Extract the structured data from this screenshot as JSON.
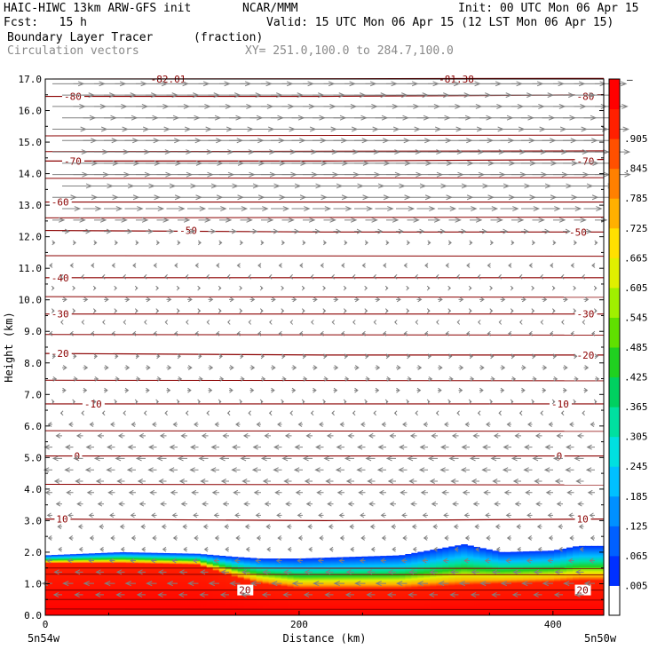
{
  "header": {
    "model": "HAIC-HIWC 13km ARW-GFS init",
    "org": "NCAR/MMM",
    "init": "Init: 00 UTC Mon 06 Apr 15",
    "fcst": "Fcst:   15 h",
    "valid": "Valid: 15 UTC Mon 06 Apr 15 (12 LST Mon 06 Apr 15)",
    "field": "Boundary Layer Tracer",
    "field_units": "(fraction)",
    "vectors": "Circulation vectors",
    "xy": "XY= 251.0,100.0 to 284.7,100.0"
  },
  "chart_data": {
    "type": "heatmap",
    "title": "Boundary Layer Tracer",
    "xlabel": "Distance (km)",
    "ylabel": "Height (km)",
    "xlim": [
      0,
      440
    ],
    "ylim": [
      0,
      17
    ],
    "x_ticks": [
      {
        "v": 0,
        "label": "0"
      },
      {
        "v": 200,
        "label": "200"
      },
      {
        "v": 400,
        "label": "400"
      }
    ],
    "x_end_labels": [
      "5n54w",
      "5n50w"
    ],
    "y_ticks": [
      {
        "v": 0,
        "label": "0.0"
      },
      {
        "v": 1,
        "label": "1.0"
      },
      {
        "v": 2,
        "label": "2.0"
      },
      {
        "v": 3,
        "label": "3.0"
      },
      {
        "v": 4,
        "label": "4.0"
      },
      {
        "v": 5,
        "label": "5.0"
      },
      {
        "v": 6,
        "label": "6.0"
      },
      {
        "v": 7,
        "label": "7.0"
      },
      {
        "v": 8,
        "label": "8.0"
      },
      {
        "v": 9,
        "label": "9.0"
      },
      {
        "v": 10,
        "label": "10.0"
      },
      {
        "v": 11,
        "label": "11.0"
      },
      {
        "v": 12,
        "label": "12.0"
      },
      {
        "v": 13,
        "label": "13.0"
      },
      {
        "v": 14,
        "label": "14.0"
      },
      {
        "v": 15,
        "label": "15.0"
      },
      {
        "v": 16,
        "label": "16.0"
      },
      {
        "v": 17,
        "label": "17.0"
      }
    ],
    "colorbar": {
      "labels": [
        ".005",
        ".065",
        ".125",
        ".185",
        ".245",
        ".305",
        ".365",
        ".425",
        ".485",
        ".545",
        ".605",
        ".665",
        ".725",
        ".785",
        ".845",
        ".905"
      ],
      "top_label": "—",
      "colors": [
        "#ffffff",
        "#0030ff",
        "#0060ff",
        "#0090ff",
        "#00c0ff",
        "#00e0e0",
        "#00e0a0",
        "#00d060",
        "#20d020",
        "#60e000",
        "#a0f000",
        "#e0f000",
        "#ffe000",
        "#ffb000",
        "#ff8000",
        "#ff5000",
        "#ff2000",
        "#ff0000"
      ]
    },
    "tracer_profile": [
      {
        "x": 0,
        "top": 1.9,
        "solid": 1.65
      },
      {
        "x": 60,
        "top": 2.0,
        "solid": 1.65
      },
      {
        "x": 120,
        "top": 1.95,
        "solid": 1.6
      },
      {
        "x": 150,
        "top": 1.85,
        "solid": 1.2
      },
      {
        "x": 170,
        "top": 1.8,
        "solid": 1.0
      },
      {
        "x": 200,
        "top": 1.8,
        "solid": 0.85
      },
      {
        "x": 280,
        "top": 1.9,
        "solid": 0.85
      },
      {
        "x": 330,
        "top": 2.25,
        "solid": 0.95
      },
      {
        "x": 360,
        "top": 2.0,
        "solid": 1.0
      },
      {
        "x": 400,
        "top": 2.05,
        "solid": 1.05
      },
      {
        "x": 420,
        "top": 2.2,
        "solid": 1.1
      },
      {
        "x": 440,
        "top": 2.2,
        "solid": 1.1
      }
    ],
    "temperature_contours": [
      {
        "level": "-80",
        "y": [
          16.45,
          16.45,
          16.5
        ]
      },
      {
        "level": "-70",
        "y": [
          14.4,
          14.4,
          14.45
        ]
      },
      {
        "level": "-60",
        "y": [
          13.1,
          13.1,
          13.1
        ]
      },
      {
        "level": "-50",
        "y": [
          12.2,
          12.15,
          12.15
        ]
      },
      {
        "level": "-40",
        "y": [
          10.7,
          10.7,
          10.7
        ]
      },
      {
        "level": "-30",
        "y": [
          9.55,
          9.55,
          9.55
        ]
      },
      {
        "level": "-20",
        "y": [
          8.3,
          8.25,
          8.25
        ]
      },
      {
        "level": "-10",
        "y": [
          6.7,
          6.7,
          6.7
        ]
      },
      {
        "level": "0",
        "y": [
          5.05,
          5.05,
          5.05
        ]
      },
      {
        "level": "10",
        "y": [
          3.05,
          3.0,
          3.05
        ]
      },
      {
        "level": "20",
        "y": [
          0.8,
          0.8,
          0.8
        ]
      }
    ],
    "extra_contours": [
      17.0,
      15.2,
      14.7,
      13.85,
      12.6,
      11.4,
      10.1,
      8.9,
      7.45,
      5.85,
      4.15,
      1.5,
      1.3,
      0.5,
      0.2
    ],
    "top_edge_labels": [
      "-82.01",
      "-81.38"
    ],
    "line_labels": [
      {
        "text": "-80",
        "x": 14,
        "y": 16.45
      },
      {
        "text": "-80",
        "x": 418,
        "y": 16.45
      },
      {
        "text": "-70",
        "x": 14,
        "y": 14.4
      },
      {
        "text": "-70",
        "x": 418,
        "y": 14.4
      },
      {
        "text": "-60",
        "x": 4,
        "y": 13.1
      },
      {
        "text": "-50",
        "x": 105,
        "y": 12.2
      },
      {
        "text": "-50",
        "x": 412,
        "y": 12.15
      },
      {
        "text": "-40",
        "x": 4,
        "y": 10.7
      },
      {
        "text": "-30",
        "x": 4,
        "y": 9.55
      },
      {
        "text": "-30",
        "x": 418,
        "y": 9.55
      },
      {
        "text": "-20",
        "x": 4,
        "y": 8.3
      },
      {
        "text": "-20",
        "x": 418,
        "y": 8.25
      },
      {
        "text": "-10",
        "x": 30,
        "y": 6.7
      },
      {
        "text": "-10",
        "x": 398,
        "y": 6.7
      },
      {
        "text": "0",
        "x": 22,
        "y": 5.05
      },
      {
        "text": "0",
        "x": 402,
        "y": 5.05
      },
      {
        "text": "10",
        "x": 8,
        "y": 3.05
      },
      {
        "text": "10",
        "x": 418,
        "y": 3.05
      },
      {
        "text": "20",
        "x": 152,
        "y": 0.8
      },
      {
        "text": "20",
        "x": 418,
        "y": 0.8
      }
    ],
    "wind_profile": [
      {
        "z": 16.9,
        "u": 28
      },
      {
        "z": 15.5,
        "u": 30
      },
      {
        "z": 14.0,
        "u": 32
      },
      {
        "z": 13.3,
        "u": 22
      },
      {
        "z": 12.5,
        "u": 10
      },
      {
        "z": 11.8,
        "u": 2
      },
      {
        "z": 11.0,
        "u": -3
      },
      {
        "z": 10.0,
        "u": 4
      },
      {
        "z": 9.0,
        "u": -3
      },
      {
        "z": 8.0,
        "u": 4
      },
      {
        "z": 7.0,
        "u": 3
      },
      {
        "z": 6.0,
        "u": -4
      },
      {
        "z": 5.0,
        "u": -8
      },
      {
        "z": 4.0,
        "u": -6
      },
      {
        "z": 3.0,
        "u": -4
      },
      {
        "z": 2.0,
        "u": -3
      },
      {
        "z": 1.0,
        "u": -9
      },
      {
        "z": 0.2,
        "u": -5
      }
    ],
    "grid": false
  }
}
